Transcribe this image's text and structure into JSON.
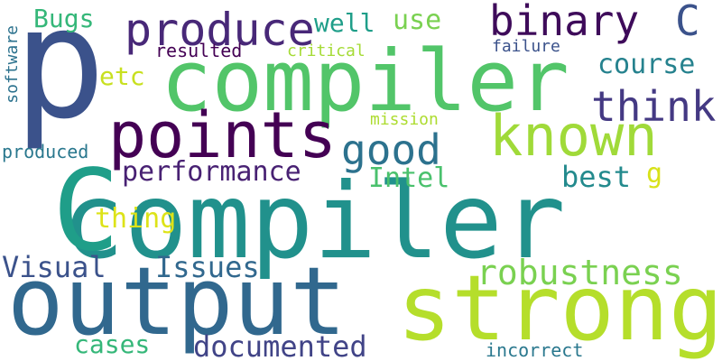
{
  "background": "#ffffff",
  "words": [
    {
      "text": "compiler",
      "color": "#21918c"
    },
    {
      "text": "compiler",
      "color": "#52c569"
    },
    {
      "text": "p",
      "color": "#3b528b"
    },
    {
      "text": "C",
      "color": "#1f9e89"
    },
    {
      "text": "output",
      "color": "#31688e"
    },
    {
      "text": "strong",
      "color": "#b5de2b"
    },
    {
      "text": "points",
      "color": "#440154"
    },
    {
      "text": "known",
      "color": "#a0da39"
    },
    {
      "text": "produce",
      "color": "#482878"
    },
    {
      "text": "binary",
      "color": "#3e0b5a"
    },
    {
      "text": "C",
      "color": "#3b528b"
    },
    {
      "text": "think",
      "color": "#443983"
    },
    {
      "text": "good",
      "color": "#2c728e"
    },
    {
      "text": "robustness",
      "color": "#7ad151"
    },
    {
      "text": "documented",
      "color": "#414487"
    },
    {
      "text": "performance",
      "color": "#482173"
    },
    {
      "text": "Visual",
      "color": "#3b528b"
    },
    {
      "text": "Issues",
      "color": "#31688e"
    },
    {
      "text": "Intel",
      "color": "#4ac16d"
    },
    {
      "text": "best",
      "color": "#238a8d"
    },
    {
      "text": "course",
      "color": "#26828e"
    },
    {
      "text": "thing",
      "color": "#dde318"
    },
    {
      "text": "cases",
      "color": "#35b779"
    },
    {
      "text": "Bugs",
      "color": "#35b779"
    },
    {
      "text": "well",
      "color": "#1f9e89"
    },
    {
      "text": "use",
      "color": "#7ad151"
    },
    {
      "text": "etc",
      "color": "#c8e020"
    },
    {
      "text": "g",
      "color": "#d8e219"
    },
    {
      "text": "incorrect",
      "color": "#2a788e"
    },
    {
      "text": "resulted",
      "color": "#440154"
    },
    {
      "text": "critical",
      "color": "#a5db36"
    },
    {
      "text": "failure",
      "color": "#3b528b"
    },
    {
      "text": "mission",
      "color": "#addc30"
    },
    {
      "text": "produced",
      "color": "#2a788e"
    },
    {
      "text": "software",
      "color": "#2c728e"
    }
  ]
}
